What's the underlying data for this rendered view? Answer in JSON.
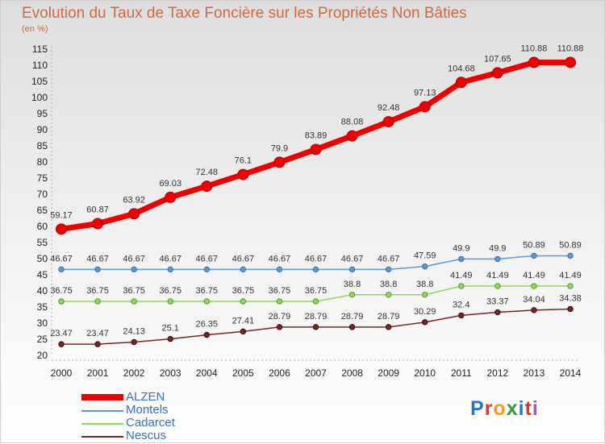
{
  "header": {
    "title": "Evolution du Taux de Taxe Foncière sur les Propriétés Non Bâties",
    "unit": "(en %)"
  },
  "logo": {
    "text": "Proxiti"
  },
  "chart_data": {
    "type": "line",
    "categories": [
      "2000",
      "2001",
      "2002",
      "2003",
      "2004",
      "2005",
      "2006",
      "2007",
      "2008",
      "2009",
      "2010",
      "2011",
      "2012",
      "2013",
      "2014"
    ],
    "ylim": [
      20,
      115
    ],
    "yticks": [
      20,
      25,
      30,
      35,
      40,
      45,
      50,
      55,
      60,
      65,
      70,
      75,
      80,
      85,
      90,
      95,
      100,
      105,
      110,
      115
    ],
    "grid": false,
    "legend_position": "bottom-left",
    "series": [
      {
        "name": "ALZEN",
        "color": "#ee0000",
        "values": [
          59.17,
          60.87,
          63.92,
          69.03,
          72.48,
          76.1,
          79.9,
          83.89,
          88.08,
          92.48,
          97.13,
          104.68,
          107.65,
          110.88,
          110.88
        ],
        "labels": [
          "59.17",
          "60.87",
          "63.92",
          "69.03",
          "72.48",
          "76.1",
          "79.9",
          "83.89",
          "88.08",
          "92.48",
          "97.13",
          "104.68",
          "107.65",
          "110.88",
          "110.88"
        ]
      },
      {
        "name": "Montels",
        "color": "#5b9bd5",
        "values": [
          46.67,
          46.67,
          46.67,
          46.67,
          46.67,
          46.67,
          46.67,
          46.67,
          46.67,
          46.67,
          47.59,
          49.9,
          49.9,
          50.89,
          50.89
        ],
        "labels": [
          "46.67",
          "46.67",
          "46.67",
          "46.67",
          "46.67",
          "46.67",
          "46.67",
          "46.67",
          "46.67",
          "46.67",
          "47.59",
          "49.9",
          "49.9",
          "50.89",
          "50.89"
        ]
      },
      {
        "name": "Cadarcet",
        "color": "#8ed85a",
        "values": [
          36.75,
          36.75,
          36.75,
          36.75,
          36.75,
          36.75,
          36.75,
          36.75,
          38.8,
          38.8,
          38.8,
          41.49,
          41.49,
          41.49,
          41.49
        ],
        "labels": [
          "36.75",
          "36.75",
          "36.75",
          "36.75",
          "36.75",
          "36.75",
          "36.75",
          "36.75",
          "38.8",
          "38.8",
          "38.8",
          "41.49",
          "41.49",
          "41.49",
          "41.49"
        ]
      },
      {
        "name": "Nescus",
        "color": "#7a2424",
        "values": [
          23.47,
          23.47,
          24.13,
          25.1,
          26.35,
          27.41,
          28.79,
          28.79,
          28.79,
          28.79,
          30.29,
          32.4,
          33.37,
          34.04,
          34.38
        ],
        "labels": [
          "23.47",
          "23.47",
          "24.13",
          "25.1",
          "26.35",
          "27.41",
          "28.79",
          "28.79",
          "28.79",
          "28.79",
          "30.29",
          "32.4",
          "33.37",
          "34.04",
          "34.38"
        ]
      }
    ]
  }
}
